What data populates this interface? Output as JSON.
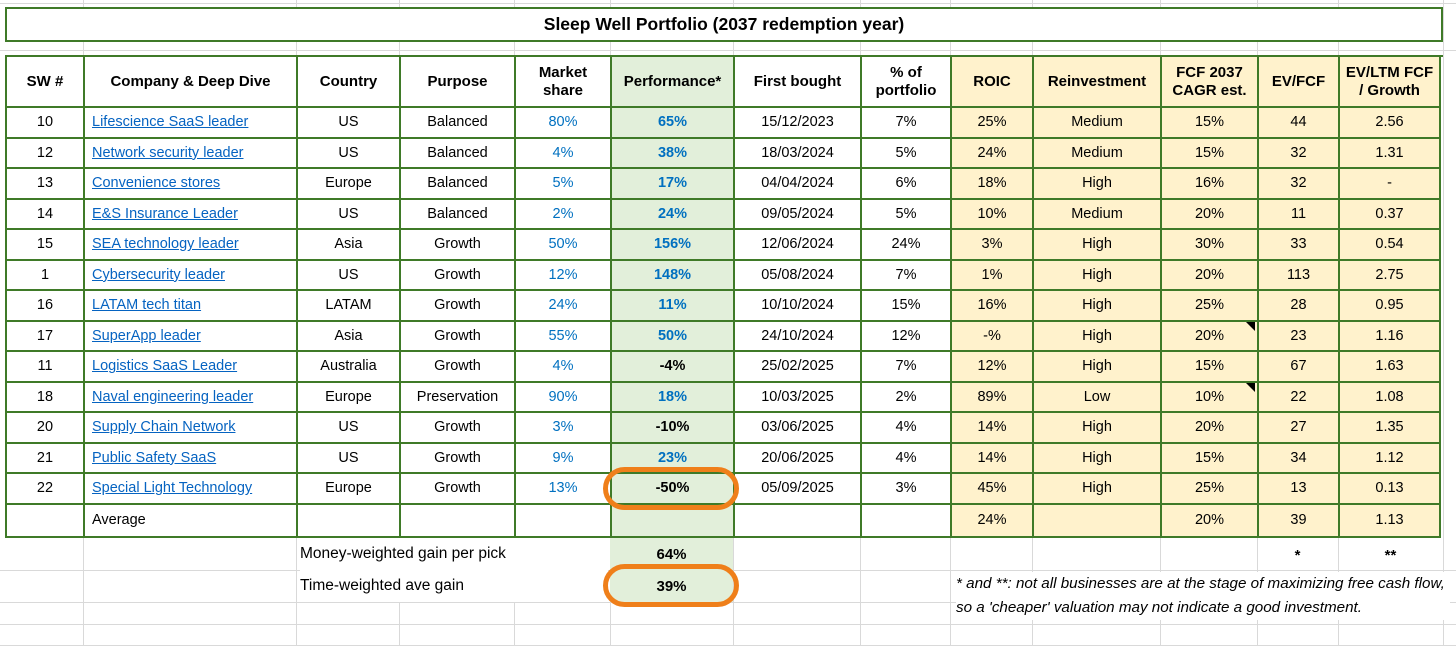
{
  "title": "Sleep Well Portfolio (2037 redemption year)",
  "columns": {
    "sw": "SW #",
    "company": "Company & Deep Dive",
    "country": "Country",
    "purpose": "Purpose",
    "market": "Market\nshare",
    "performance": "Performance*",
    "first": "First bought",
    "pct": "% of\nportfolio",
    "roic": "ROIC",
    "reinvest": "Reinvestment",
    "fcf": "FCF 2037\nCAGR est.",
    "evfcf": "EV/FCF",
    "evltm": "EV/LTM FCF\n/ Growth"
  },
  "rows": [
    {
      "sw": "10",
      "company": "Lifescience SaaS leader",
      "country": "US",
      "purpose": "Balanced",
      "market": "80%",
      "performance": "65%",
      "first": "15/12/2023",
      "pct": "7%",
      "roic": "25%",
      "reinvest": "Medium",
      "fcf": "15%",
      "evfcf": "44",
      "evltm": "2.56",
      "fcf_note": false,
      "circled_performance": false
    },
    {
      "sw": "12",
      "company": "Network security leader",
      "country": "US",
      "purpose": "Balanced",
      "market": "4%",
      "performance": "38%",
      "first": "18/03/2024",
      "pct": "5%",
      "roic": "24%",
      "reinvest": "Medium",
      "fcf": "15%",
      "evfcf": "32",
      "evltm": "1.31",
      "fcf_note": false,
      "circled_performance": false
    },
    {
      "sw": "13",
      "company": "Convenience stores",
      "country": "Europe",
      "purpose": "Balanced",
      "market": "5%",
      "performance": "17%",
      "first": "04/04/2024",
      "pct": "6%",
      "roic": "18%",
      "reinvest": "High",
      "fcf": "16%",
      "evfcf": "32",
      "evltm": "-",
      "fcf_note": false,
      "circled_performance": false
    },
    {
      "sw": "14",
      "company": "E&S Insurance Leader",
      "country": "US",
      "purpose": "Balanced",
      "market": "2%",
      "performance": "24%",
      "first": "09/05/2024",
      "pct": "5%",
      "roic": "10%",
      "reinvest": "Medium",
      "fcf": "20%",
      "evfcf": "11",
      "evltm": "0.37",
      "fcf_note": false,
      "circled_performance": false
    },
    {
      "sw": "15",
      "company": "SEA technology leader",
      "country": "Asia",
      "purpose": "Growth",
      "market": "50%",
      "performance": "156%",
      "first": "12/06/2024",
      "pct": "24%",
      "roic": "3%",
      "reinvest": "High",
      "fcf": "30%",
      "evfcf": "33",
      "evltm": "0.54",
      "fcf_note": false,
      "circled_performance": false
    },
    {
      "sw": "1",
      "company": "Cybersecurity leader",
      "country": "US",
      "purpose": "Growth",
      "market": "12%",
      "performance": "148%",
      "first": "05/08/2024",
      "pct": "7%",
      "roic": "1%",
      "reinvest": "High",
      "fcf": "20%",
      "evfcf": "113",
      "evltm": "2.75",
      "fcf_note": false,
      "circled_performance": false
    },
    {
      "sw": "16",
      "company": "LATAM tech titan",
      "country": "LATAM",
      "purpose": "Growth",
      "market": "24%",
      "performance": "11%",
      "first": "10/10/2024",
      "pct": "15%",
      "roic": "16%",
      "reinvest": "High",
      "fcf": "25%",
      "evfcf": "28",
      "evltm": "0.95",
      "fcf_note": false,
      "circled_performance": false
    },
    {
      "sw": "17",
      "company": "SuperApp leader",
      "country": "Asia",
      "purpose": "Growth",
      "market": "55%",
      "performance": "50%",
      "first": "24/10/2024",
      "pct": "12%",
      "roic": "-%",
      "reinvest": "High",
      "fcf": "20%",
      "evfcf": "23",
      "evltm": "1.16",
      "fcf_note": true,
      "circled_performance": false
    },
    {
      "sw": "11",
      "company": "Logistics SaaS Leader",
      "country": "Australia",
      "purpose": "Growth",
      "market": "4%",
      "performance": "-4%",
      "first": "25/02/2025",
      "pct": "7%",
      "roic": "12%",
      "reinvest": "High",
      "fcf": "15%",
      "evfcf": "67",
      "evltm": "1.63",
      "fcf_note": false,
      "circled_performance": false
    },
    {
      "sw": "18",
      "company": "Naval engineering leader",
      "country": "Europe",
      "purpose": "Preservation",
      "market": "90%",
      "performance": "18%",
      "first": "10/03/2025",
      "pct": "2%",
      "roic": "89%",
      "reinvest": "Low",
      "fcf": "10%",
      "evfcf": "22",
      "evltm": "1.08",
      "fcf_note": true,
      "circled_performance": false
    },
    {
      "sw": "20",
      "company": "Supply Chain Network",
      "country": "US",
      "purpose": "Growth",
      "market": "3%",
      "performance": "-10%",
      "first": "03/06/2025",
      "pct": "4%",
      "roic": "14%",
      "reinvest": "High",
      "fcf": "20%",
      "evfcf": "27",
      "evltm": "1.35",
      "fcf_note": false,
      "circled_performance": false
    },
    {
      "sw": "21",
      "company": "Public Safety SaaS",
      "country": "US",
      "purpose": "Growth",
      "market": "9%",
      "performance": "23%",
      "first": "20/06/2025",
      "pct": "4%",
      "roic": "14%",
      "reinvest": "High",
      "fcf": "15%",
      "evfcf": "34",
      "evltm": "1.12",
      "fcf_note": false,
      "circled_performance": false
    },
    {
      "sw": "22",
      "company": "Special Light Technology",
      "country": "Europe",
      "purpose": "Growth",
      "market": "13%",
      "performance": "-50%",
      "first": "05/09/2025",
      "pct": "3%",
      "roic": "45%",
      "reinvest": "High",
      "fcf": "25%",
      "evfcf": "13",
      "evltm": "0.13",
      "fcf_note": false,
      "circled_performance": true
    }
  ],
  "average_row": {
    "label": "Average",
    "roic": "24%",
    "reinvest": "",
    "fcf": "20%",
    "evfcf": "39",
    "evltm": "1.13"
  },
  "summary": {
    "money_weighted_label": "Money-weighted gain per pick",
    "money_weighted_value": "64%",
    "time_weighted_label": "Time-weighted ave gain",
    "time_weighted_value": "39%",
    "time_weighted_circled": true
  },
  "footnote": {
    "star": "*",
    "double_star": "**",
    "text": "* and **: not all businesses are at the stage of maximizing free cash flow, so a 'cheaper' valuation may not indicate a good investment."
  },
  "colors": {
    "border_green": "#3f7a28",
    "fill_green": "#E2EFDA",
    "fill_yellow": "#FFF2CC",
    "link_blue": "#0563C1",
    "value_blue": "#0070C0",
    "highlight_orange": "#EF7F1A",
    "gridline_gray": "#D9D9D9"
  }
}
